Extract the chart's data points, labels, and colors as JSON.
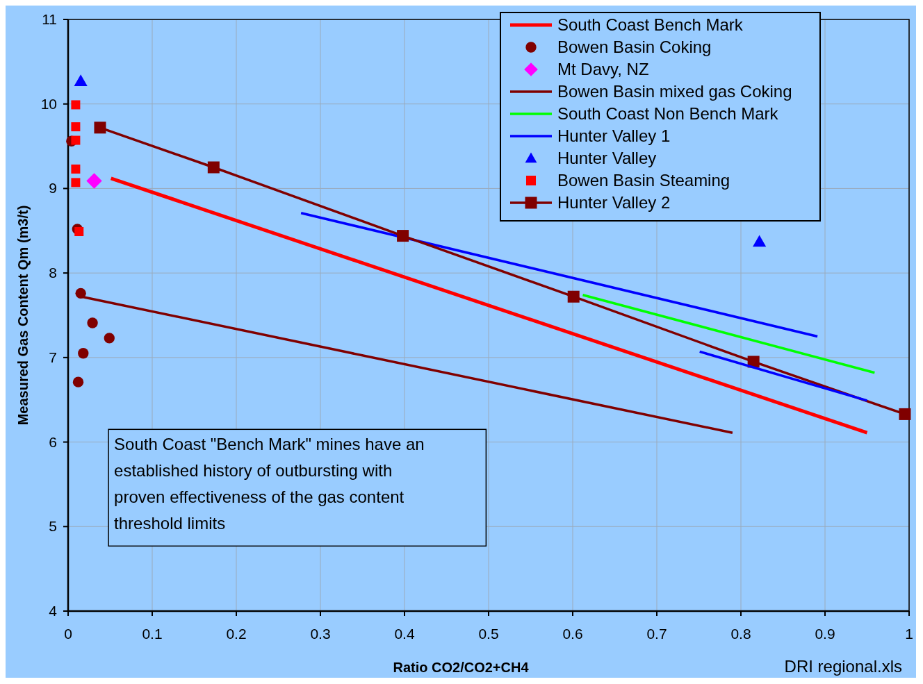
{
  "chart_data": {
    "type": "scatter",
    "xlabel": "Ratio CO2/CO2+CH4",
    "ylabel": "Measured Gas Content Qm (m3/t)",
    "xlim": [
      0,
      1
    ],
    "xticks": [
      0,
      0.1,
      0.2,
      0.3,
      0.4,
      0.5,
      0.6,
      0.7,
      0.8,
      0.9,
      1
    ],
    "ylim": [
      4,
      11
    ],
    "yticks": [
      4,
      5,
      6,
      7,
      8,
      9,
      10,
      11
    ],
    "grid": true,
    "legend": "top right",
    "annotations": [
      "South Coast \"Bench Mark\" mines have an established history of outbursting with proven effectiveness of the gas content threshold limits",
      "DRI regional.xls"
    ],
    "series": [
      {
        "name": "South Coast Bench Mark",
        "type": "line",
        "marker": "none",
        "color": "#ff0000",
        "x": [
          0.051,
          0.95
        ],
        "values": [
          9.12,
          6.11
        ]
      },
      {
        "name": "Bowen Basin Coking",
        "marker": "circle",
        "color": "#800000",
        "x": [
          0.004,
          0.011,
          0.015,
          0.029,
          0.049,
          0.018,
          0.012
        ],
        "values": [
          9.56,
          8.52,
          7.76,
          7.41,
          7.23,
          7.05,
          6.71
        ]
      },
      {
        "name": "Mt Davy, NZ",
        "marker": "diamond",
        "color": "#ff00ff",
        "x": [
          0.031
        ],
        "values": [
          9.09
        ]
      },
      {
        "name": "Bowen Basin mixed gas Coking",
        "type": "line",
        "marker": "none",
        "color": "#800000",
        "x": [
          0.016,
          0.79
        ],
        "values": [
          7.72,
          6.11
        ]
      },
      {
        "name": "South Coast Non Bench Mark",
        "type": "line",
        "marker": "none",
        "color": "#00ff00",
        "x": [
          0.612,
          0.959
        ],
        "values": [
          7.74,
          6.82
        ]
      },
      {
        "name": "Hunter Valley 1",
        "type": "line",
        "marker": "none",
        "color": "#0000ff",
        "x": [
          0.277,
          0.891
        ],
        "values": [
          8.71,
          7.25
        ]
      },
      {
        "name": "Hunter Valley",
        "marker": "triangle",
        "color": "#0000ff",
        "x": [
          0.015,
          0.822
        ],
        "values": [
          10.27,
          8.37
        ]
      },
      {
        "name": "Bowen Basin Steaming",
        "marker": "square",
        "color": "#ff0000",
        "x": [
          0.009,
          0.009,
          0.009,
          0.009,
          0.009,
          0.013
        ],
        "values": [
          9.99,
          9.73,
          9.57,
          9.23,
          9.07,
          8.49
        ]
      },
      {
        "name": "Hunter Valley 2",
        "type": "line",
        "marker": "square",
        "color": "#800000",
        "x": [
          0.038,
          0.173,
          0.398,
          0.601,
          0.815,
          0.995
        ],
        "values": [
          9.72,
          9.25,
          8.44,
          7.72,
          6.95,
          6.33
        ]
      },
      {
        "type": "line",
        "marker": "none",
        "color": "#0000ff",
        "x": [
          0.751,
          0.95
        ],
        "values": [
          7.07,
          6.49
        ]
      }
    ]
  }
}
